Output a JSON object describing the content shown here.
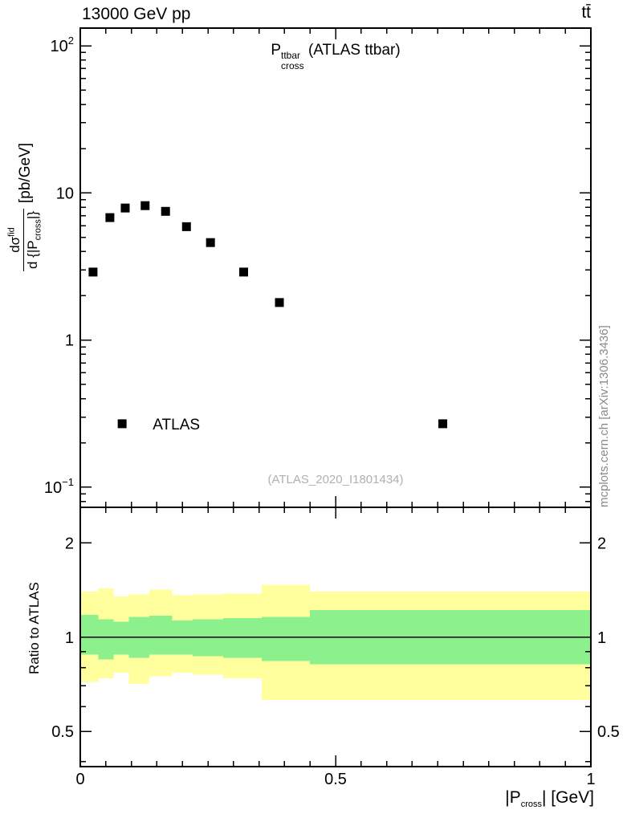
{
  "header": {
    "left": "13000 GeV pp",
    "right": "tt̄"
  },
  "main_panel": {
    "title": {
      "base": "P",
      "sup": "ttbar",
      "sub": "cross",
      "rest": " (ATLAS ttbar)"
    },
    "ylabel": {
      "num_base": "dσ",
      "num_sup": "fid",
      "den_pre": "d {|P",
      "den_sub": "cross",
      "den_post": "|}",
      "units": "[pb/GeV]"
    },
    "watermark": "(ATLAS_2020_I1801434)"
  },
  "ratio_panel": {
    "ylabel": "Ratio to ATLAS"
  },
  "xaxis": {
    "label": {
      "pre": "|P",
      "sub": "cross",
      "post": "| [GeV]"
    }
  },
  "side_text": "mcplots.cern.ch [arXiv:1306.3436]",
  "chart_data": {
    "type": "scatter",
    "title": "P_cross^ttbar (ATLAS ttbar)",
    "xlabel": "|P_cross| [GeV]",
    "xlim": [
      0,
      1
    ],
    "x_minor_step": 0.05,
    "xticks": [
      {
        "v": 0,
        "label": "0"
      },
      {
        "v": 0.5,
        "label": "0.5"
      },
      {
        "v": 1,
        "label": "1"
      }
    ],
    "legend": {
      "marker_x": 0.082,
      "text_x": 0.142,
      "y": 0.27
    },
    "main": {
      "ylabel": "dσ^fid/d{|P_cross|} [pb/GeV]",
      "yscale": "log",
      "ylim": [
        0.073,
        132
      ],
      "yticks": [
        {
          "v": 100,
          "label": "10",
          "exp": "2"
        },
        {
          "v": 10,
          "label": "10"
        },
        {
          "v": 1,
          "label": "1"
        },
        {
          "v": 0.1,
          "label": "10",
          "exp": "−1"
        }
      ],
      "series": [
        {
          "name": "ATLAS",
          "marker": "square",
          "color": "#000000",
          "points": [
            [
              0.025,
              2.9
            ],
            [
              0.058,
              6.8
            ],
            [
              0.088,
              7.9
            ],
            [
              0.127,
              8.2
            ],
            [
              0.167,
              7.5
            ],
            [
              0.208,
              5.9
            ],
            [
              0.255,
              4.6
            ],
            [
              0.32,
              2.9
            ],
            [
              0.39,
              1.8
            ],
            [
              0.71,
              0.27
            ]
          ]
        }
      ]
    },
    "ratio": {
      "ylabel": "Ratio to ATLAS",
      "yscale": "log",
      "ylim": [
        0.386,
        2.6
      ],
      "yticks": [
        {
          "v": 2,
          "label": "2"
        },
        {
          "v": 1,
          "label": "1"
        },
        {
          "v": 0.5,
          "label": "0.5"
        }
      ],
      "reference": 1,
      "colors": {
        "outer": "#ffff9e",
        "inner": "#8cf08c"
      },
      "bands": [
        {
          "x": [
            0.0,
            0.035
          ],
          "outer": [
            0.72,
            1.4
          ],
          "inner": [
            0.88,
            1.18
          ]
        },
        {
          "x": [
            0.035,
            0.065
          ],
          "outer": [
            0.74,
            1.43
          ],
          "inner": [
            0.85,
            1.14
          ]
        },
        {
          "x": [
            0.065,
            0.095
          ],
          "outer": [
            0.77,
            1.35
          ],
          "inner": [
            0.88,
            1.12
          ]
        },
        {
          "x": [
            0.095,
            0.135
          ],
          "outer": [
            0.71,
            1.37
          ],
          "inner": [
            0.86,
            1.16
          ]
        },
        {
          "x": [
            0.135,
            0.18
          ],
          "outer": [
            0.75,
            1.42
          ],
          "inner": [
            0.88,
            1.17
          ]
        },
        {
          "x": [
            0.18,
            0.22
          ],
          "outer": [
            0.77,
            1.36
          ],
          "inner": [
            0.88,
            1.13
          ]
        },
        {
          "x": [
            0.22,
            0.28
          ],
          "outer": [
            0.76,
            1.37
          ],
          "inner": [
            0.87,
            1.14
          ]
        },
        {
          "x": [
            0.28,
            0.355
          ],
          "outer": [
            0.74,
            1.38
          ],
          "inner": [
            0.86,
            1.15
          ]
        },
        {
          "x": [
            0.355,
            0.45
          ],
          "outer": [
            0.63,
            1.47
          ],
          "inner": [
            0.84,
            1.16
          ]
        },
        {
          "x": [
            0.45,
            1.0
          ],
          "outer": [
            0.63,
            1.4
          ],
          "inner": [
            0.82,
            1.22
          ]
        }
      ]
    }
  }
}
